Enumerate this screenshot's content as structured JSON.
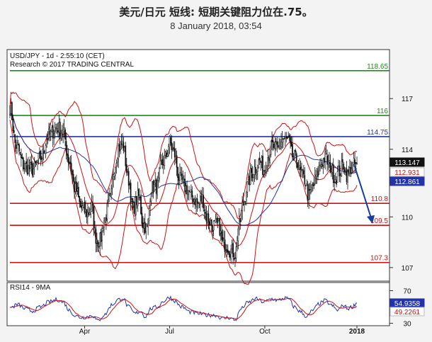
{
  "header": {
    "title": "美元/日元 短线: 短期关键阻力位在.75。",
    "subtitle": "8 January 2018, 03:54"
  },
  "chart_data": {
    "type": "candlestick",
    "price_panel": {
      "label_line1": "USD/JPY - 1d - 2:55:10 (CET)",
      "label_line2": "Research © 2017 TRADING CENTRAL",
      "ylim": [
        106.2,
        119.9
      ],
      "y_ticks": [
        117,
        114,
        110,
        107
      ],
      "levels": [
        {
          "value": 118.65,
          "label": "118.65",
          "color": "#1e8c1e"
        },
        {
          "value": 116,
          "label": "116",
          "color": "#1e8c1e"
        },
        {
          "value": 114.75,
          "label": "114.75",
          "color": "#2233aa"
        },
        {
          "value": 110.8,
          "label": "110.8",
          "color": "#cc1111"
        },
        {
          "value": 109.5,
          "label": "109.5",
          "color": "#cc1111"
        },
        {
          "value": 107.3,
          "label": "107.3",
          "color": "#cc1111"
        }
      ],
      "price_tags": [
        {
          "value": 113.147,
          "label": "113.147",
          "bg": "#111111",
          "fg": "#ffffff"
        },
        {
          "value": 112.931,
          "label": "112.931",
          "bg": "#ffffff",
          "fg": "#cc1111"
        },
        {
          "value": 112.861,
          "label": "112.861",
          "bg": "#2233aa",
          "fg": "#ffffff"
        }
      ],
      "forecast_arrow": {
        "from": 113.1,
        "to": 109.6
      }
    },
    "rsi_panel": {
      "label": "RSI14 - 9MA",
      "ylim": [
        27,
        80
      ],
      "y_ticks": [
        70,
        50,
        30
      ],
      "value_tags": [
        {
          "value": 54.9358,
          "label": "54.9358",
          "bg": "#2233aa",
          "fg": "#ffffff"
        },
        {
          "value": 49.2261,
          "label": "49.2261",
          "bg": "#ffffff",
          "fg": "#cc1111"
        }
      ]
    },
    "x_axis": {
      "labels": [
        {
          "label": "Apr",
          "idx": 73
        },
        {
          "label": "Jul",
          "idx": 156
        },
        {
          "label": "Oct",
          "idx": 249
        },
        {
          "label": "2018",
          "idx": 339
        }
      ],
      "count": 340
    },
    "close_anchors": [
      [
        0,
        116.5
      ],
      [
        6,
        114.2
      ],
      [
        14,
        113.0
      ],
      [
        22,
        112.8
      ],
      [
        30,
        113.5
      ],
      [
        38,
        114.8
      ],
      [
        46,
        115.3
      ],
      [
        52,
        115.0
      ],
      [
        58,
        113.3
      ],
      [
        64,
        111.6
      ],
      [
        70,
        110.5
      ],
      [
        76,
        110.2
      ],
      [
        80,
        110.6
      ],
      [
        84,
        108.8
      ],
      [
        88,
        108.6
      ],
      [
        92,
        109.8
      ],
      [
        98,
        111.0
      ],
      [
        102,
        113.0
      ],
      [
        106,
        114.1
      ],
      [
        110,
        114.3
      ],
      [
        116,
        112.2
      ],
      [
        120,
        110.4
      ],
      [
        126,
        111.2
      ],
      [
        130,
        109.6
      ],
      [
        134,
        109.3
      ],
      [
        138,
        111.7
      ],
      [
        144,
        111.8
      ],
      [
        148,
        113.1
      ],
      [
        152,
        113.5
      ],
      [
        156,
        114.4
      ],
      [
        160,
        113.8
      ],
      [
        166,
        112.2
      ],
      [
        172,
        111.7
      ],
      [
        178,
        111.2
      ],
      [
        184,
        110.8
      ],
      [
        188,
        111.1
      ],
      [
        192,
        110.0
      ],
      [
        198,
        109.5
      ],
      [
        204,
        109.5
      ],
      [
        208,
        108.4
      ],
      [
        212,
        108.3
      ],
      [
        216,
        108.0
      ],
      [
        220,
        107.8
      ],
      [
        224,
        109.6
      ],
      [
        228,
        110.8
      ],
      [
        232,
        111.8
      ],
      [
        236,
        112.6
      ],
      [
        240,
        112.9
      ],
      [
        244,
        113.3
      ],
      [
        248,
        112.8
      ],
      [
        252,
        113.6
      ],
      [
        256,
        114.2
      ],
      [
        262,
        114.0
      ],
      [
        266,
        114.6
      ],
      [
        272,
        114.5
      ],
      [
        276,
        113.6
      ],
      [
        280,
        113.4
      ],
      [
        284,
        112.6
      ],
      [
        288,
        112.2
      ],
      [
        292,
        111.2
      ],
      [
        296,
        111.8
      ],
      [
        300,
        112.5
      ],
      [
        304,
        113.2
      ],
      [
        308,
        113.5
      ],
      [
        312,
        113.0
      ],
      [
        318,
        112.3
      ],
      [
        322,
        112.7
      ],
      [
        326,
        113.1
      ],
      [
        330,
        112.4
      ],
      [
        334,
        113.0
      ],
      [
        339,
        113.147
      ]
    ],
    "rsi_anchors": [
      [
        0,
        49
      ],
      [
        8,
        53
      ],
      [
        14,
        48
      ],
      [
        22,
        45
      ],
      [
        30,
        50
      ],
      [
        38,
        56
      ],
      [
        46,
        59
      ],
      [
        52,
        56
      ],
      [
        58,
        46
      ],
      [
        64,
        39
      ],
      [
        70,
        37
      ],
      [
        76,
        38
      ],
      [
        80,
        40
      ],
      [
        86,
        33
      ],
      [
        92,
        40
      ],
      [
        100,
        53
      ],
      [
        106,
        59
      ],
      [
        110,
        61
      ],
      [
        116,
        50
      ],
      [
        122,
        42
      ],
      [
        128,
        45
      ],
      [
        132,
        38
      ],
      [
        138,
        48
      ],
      [
        144,
        50
      ],
      [
        150,
        57
      ],
      [
        156,
        62
      ],
      [
        160,
        58
      ],
      [
        168,
        50
      ],
      [
        176,
        44
      ],
      [
        184,
        42
      ],
      [
        192,
        40
      ],
      [
        200,
        40
      ],
      [
        208,
        36
      ],
      [
        214,
        37
      ],
      [
        220,
        34
      ],
      [
        226,
        48
      ],
      [
        232,
        55
      ],
      [
        240,
        60
      ],
      [
        248,
        56
      ],
      [
        256,
        60
      ],
      [
        262,
        58
      ],
      [
        268,
        61
      ],
      [
        272,
        60
      ],
      [
        278,
        50
      ],
      [
        284,
        44
      ],
      [
        290,
        38
      ],
      [
        296,
        46
      ],
      [
        302,
        54
      ],
      [
        308,
        58
      ],
      [
        314,
        52
      ],
      [
        320,
        46
      ],
      [
        326,
        52
      ],
      [
        330,
        48
      ],
      [
        334,
        50
      ],
      [
        339,
        54.9
      ]
    ]
  }
}
